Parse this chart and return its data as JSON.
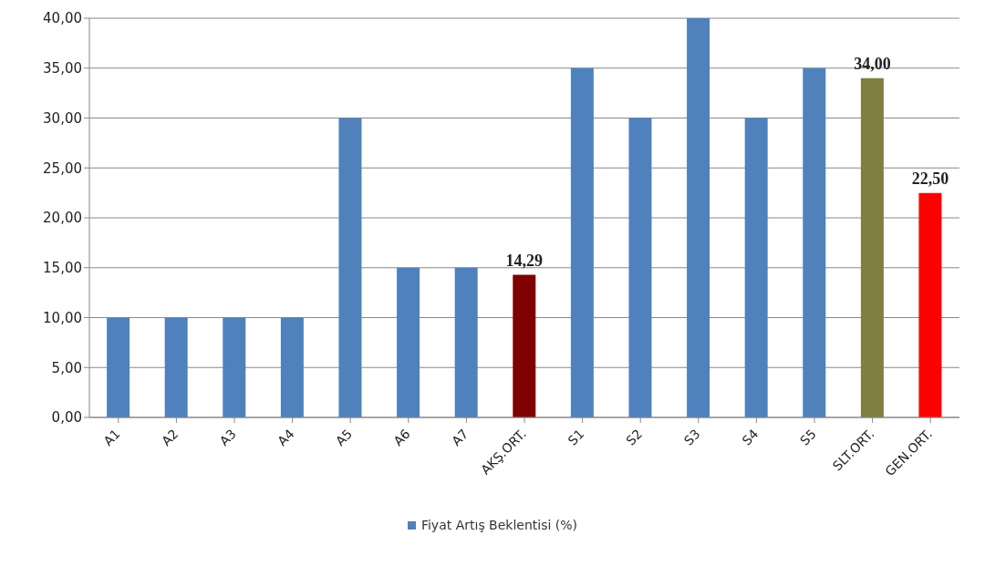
{
  "chart_data": {
    "type": "bar",
    "categories": [
      "A1",
      "A2",
      "A3",
      "A4",
      "A5",
      "A6",
      "A7",
      "AKŞ.ORT.",
      "S1",
      "S2",
      "S3",
      "S4",
      "S5",
      "SLT.ORT.",
      "GEN.ORT."
    ],
    "series": [
      {
        "name": "Fiyat Artış Beklentisi (%)",
        "color": "#4f81bd",
        "colors": [
          "#4f81bd",
          "#4f81bd",
          "#4f81bd",
          "#4f81bd",
          "#4f81bd",
          "#4f81bd",
          "#4f81bd",
          "#7f0000",
          "#4f81bd",
          "#4f81bd",
          "#4f81bd",
          "#4f81bd",
          "#4f81bd",
          "#7f7f3f",
          "#ff0000"
        ],
        "values": [
          10,
          10,
          10,
          10,
          30,
          15,
          15,
          14.29,
          35,
          30,
          40,
          30,
          35,
          34,
          22.5
        ],
        "value_labels": [
          null,
          null,
          null,
          null,
          null,
          null,
          null,
          "14,29",
          null,
          null,
          null,
          null,
          null,
          "34,00",
          "22,50"
        ]
      }
    ],
    "ylim": [
      0,
      40
    ],
    "yticks": [
      {
        "value": 0,
        "label": "0,00"
      },
      {
        "value": 5,
        "label": "5,00"
      },
      {
        "value": 10,
        "label": "10,00"
      },
      {
        "value": 15,
        "label": "15,00"
      },
      {
        "value": 20,
        "label": "20,00"
      },
      {
        "value": 25,
        "label": "25,00"
      },
      {
        "value": 30,
        "label": "30,00"
      },
      {
        "value": 35,
        "label": "35,00"
      },
      {
        "value": 40,
        "label": "40,00"
      }
    ],
    "grid": "y",
    "legend": "bottom"
  }
}
